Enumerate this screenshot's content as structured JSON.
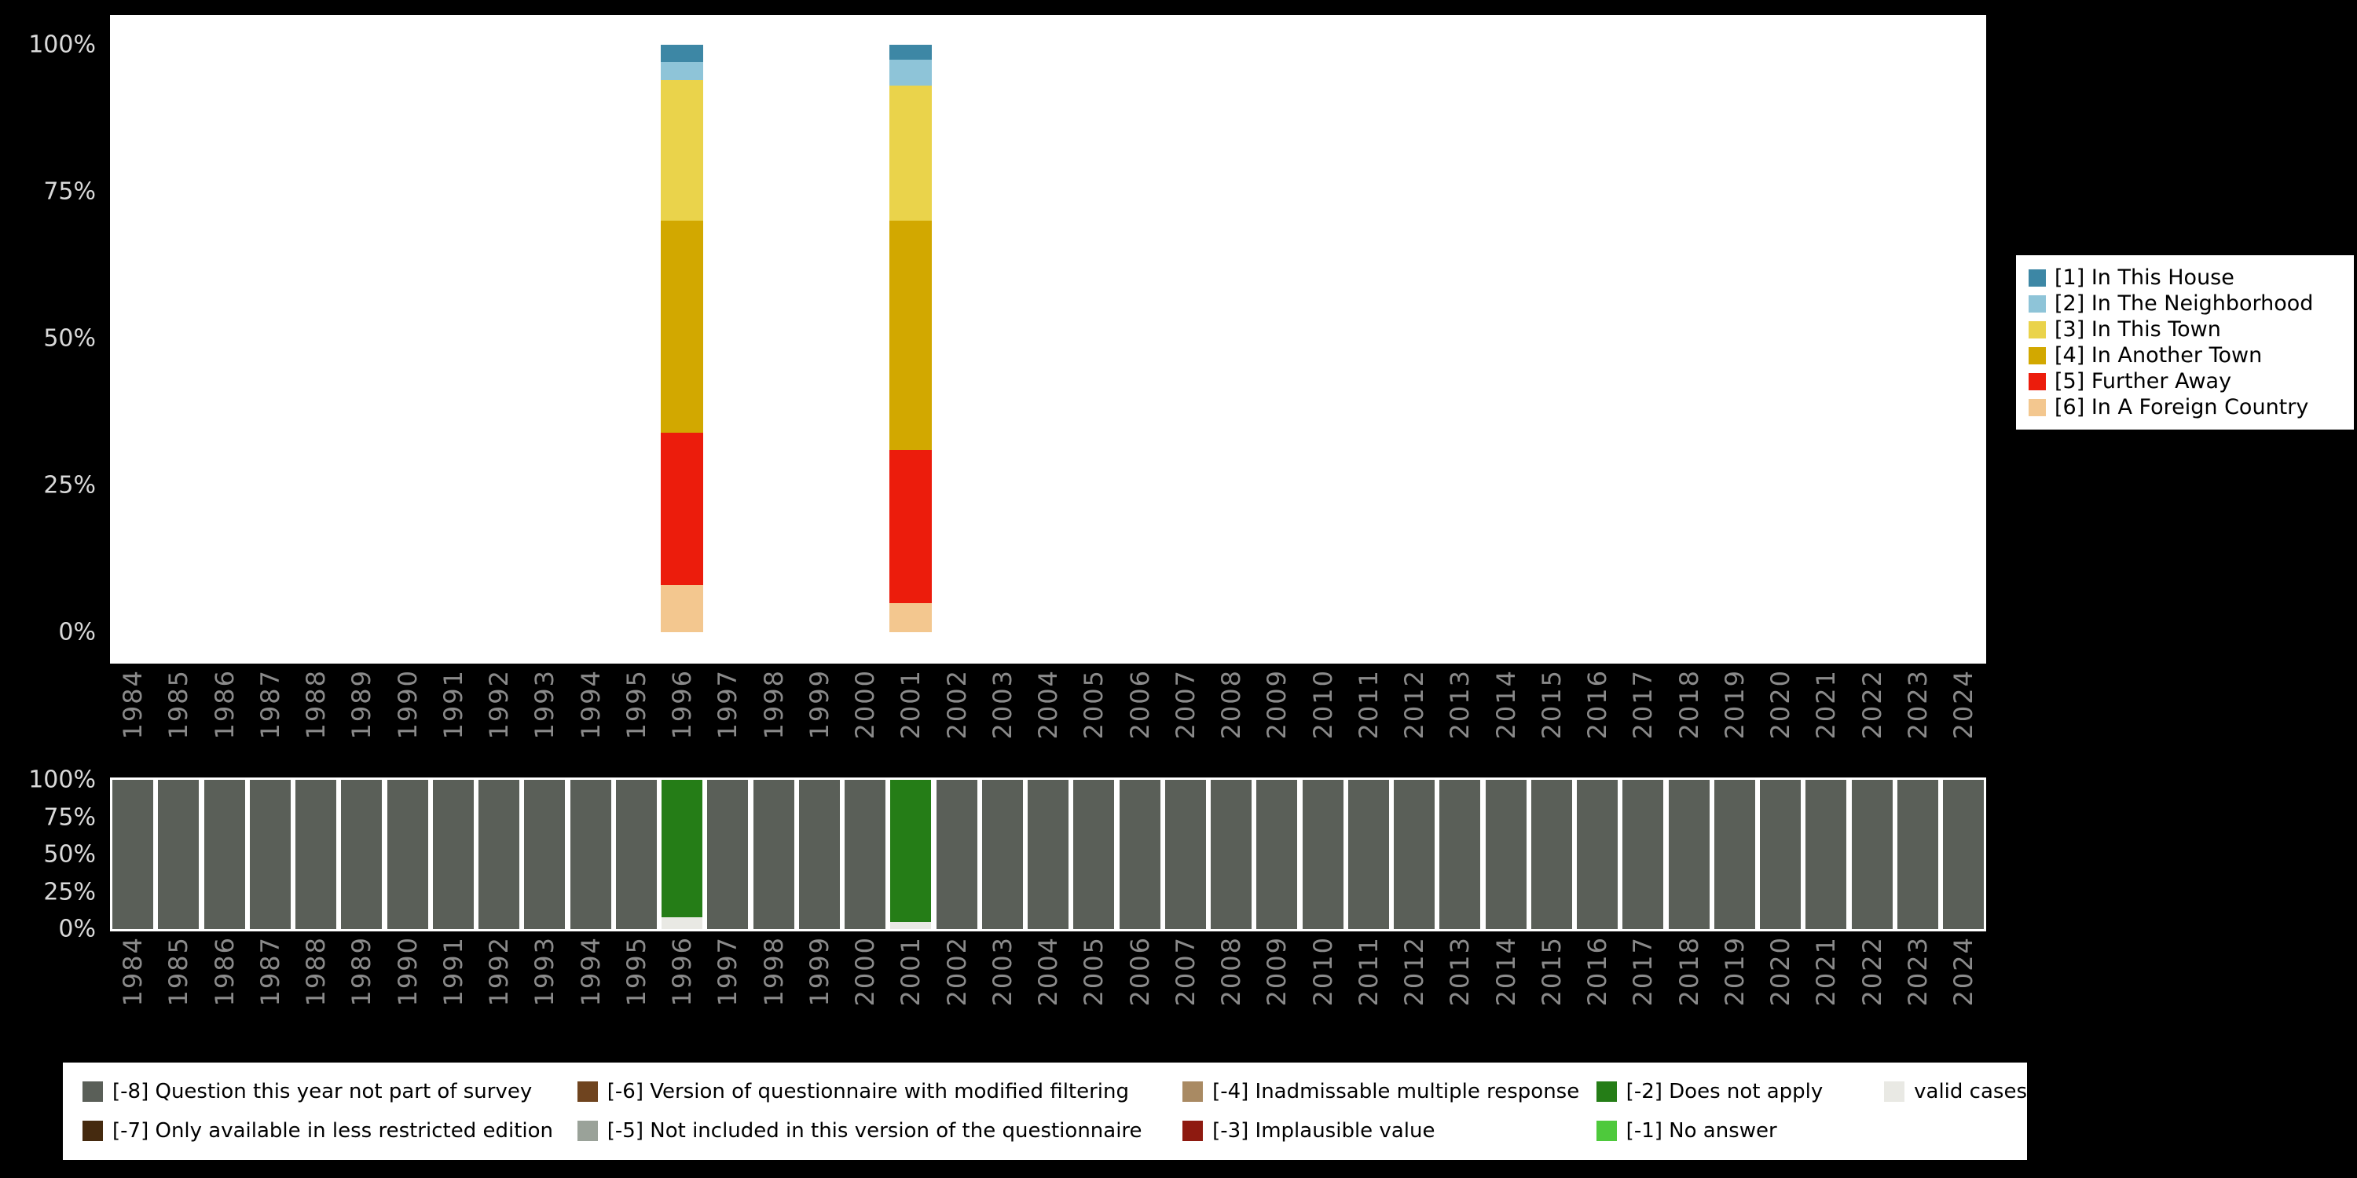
{
  "colors": {
    "background": "#000000",
    "plot_background": "#ffffff",
    "legend_background": "#ffffff",
    "axis_year_text": "#8a8a8a",
    "axis_percent_text": "#d9d9d9"
  },
  "chart_data": [
    {
      "id": "distribution",
      "type": "bar",
      "stacked": true,
      "stacking": "bottom-to-top",
      "grid": false,
      "legend_position": "right",
      "ylim": [
        0,
        100
      ],
      "yticks": [
        {
          "value": 100,
          "label": "100%"
        },
        {
          "value": 75,
          "label": "75%"
        },
        {
          "value": 50,
          "label": "50%"
        },
        {
          "value": 25,
          "label": "25%"
        },
        {
          "value": 0,
          "label": "0%"
        }
      ],
      "categories": [
        "1984",
        "1985",
        "1986",
        "1987",
        "1988",
        "1989",
        "1990",
        "1991",
        "1992",
        "1993",
        "1994",
        "1995",
        "1996",
        "1997",
        "1998",
        "1999",
        "2000",
        "2001",
        "2002",
        "2003",
        "2004",
        "2005",
        "2006",
        "2007",
        "2008",
        "2009",
        "2010",
        "2011",
        "2012",
        "2013",
        "2014",
        "2015",
        "2016",
        "2017",
        "2018",
        "2019",
        "2020",
        "2021",
        "2022",
        "2023",
        "2024"
      ],
      "series": [
        {
          "name": "[6] In A Foreign Country",
          "color": "#f3c78f",
          "values": [
            0,
            0,
            0,
            0,
            0,
            0,
            0,
            0,
            0,
            0,
            0,
            0,
            8,
            0,
            0,
            0,
            0,
            5,
            0,
            0,
            0,
            0,
            0,
            0,
            0,
            0,
            0,
            0,
            0,
            0,
            0,
            0,
            0,
            0,
            0,
            0,
            0,
            0,
            0,
            0,
            0
          ]
        },
        {
          "name": "[5] Further Away",
          "color": "#ec1c0c",
          "values": [
            0,
            0,
            0,
            0,
            0,
            0,
            0,
            0,
            0,
            0,
            0,
            0,
            26,
            0,
            0,
            0,
            0,
            26,
            0,
            0,
            0,
            0,
            0,
            0,
            0,
            0,
            0,
            0,
            0,
            0,
            0,
            0,
            0,
            0,
            0,
            0,
            0,
            0,
            0,
            0,
            0
          ]
        },
        {
          "name": "[4] In Another Town",
          "color": "#d2a800",
          "values": [
            0,
            0,
            0,
            0,
            0,
            0,
            0,
            0,
            0,
            0,
            0,
            0,
            36,
            0,
            0,
            0,
            0,
            39,
            0,
            0,
            0,
            0,
            0,
            0,
            0,
            0,
            0,
            0,
            0,
            0,
            0,
            0,
            0,
            0,
            0,
            0,
            0,
            0,
            0,
            0,
            0
          ]
        },
        {
          "name": "[3] In This Town",
          "color": "#ead34b",
          "values": [
            0,
            0,
            0,
            0,
            0,
            0,
            0,
            0,
            0,
            0,
            0,
            0,
            24,
            0,
            0,
            0,
            0,
            23,
            0,
            0,
            0,
            0,
            0,
            0,
            0,
            0,
            0,
            0,
            0,
            0,
            0,
            0,
            0,
            0,
            0,
            0,
            0,
            0,
            0,
            0,
            0
          ]
        },
        {
          "name": "[2] In The Neighborhood",
          "color": "#8ec4d8",
          "values": [
            0,
            0,
            0,
            0,
            0,
            0,
            0,
            0,
            0,
            0,
            0,
            0,
            3,
            0,
            0,
            0,
            0,
            4.5,
            0,
            0,
            0,
            0,
            0,
            0,
            0,
            0,
            0,
            0,
            0,
            0,
            0,
            0,
            0,
            0,
            0,
            0,
            0,
            0,
            0,
            0,
            0
          ]
        },
        {
          "name": "[1] In This House",
          "color": "#3d87a5",
          "values": [
            0,
            0,
            0,
            0,
            0,
            0,
            0,
            0,
            0,
            0,
            0,
            0,
            3,
            0,
            0,
            0,
            0,
            2.5,
            0,
            0,
            0,
            0,
            0,
            0,
            0,
            0,
            0,
            0,
            0,
            0,
            0,
            0,
            0,
            0,
            0,
            0,
            0,
            0,
            0,
            0,
            0
          ]
        }
      ]
    },
    {
      "id": "missings",
      "type": "bar",
      "stacked": true,
      "stacking": "bottom-to-top",
      "grid": false,
      "legend_position": "bottom",
      "ylim": [
        0,
        100
      ],
      "yticks": [
        {
          "value": 100,
          "label": "100%"
        },
        {
          "value": 75,
          "label": "75%"
        },
        {
          "value": 50,
          "label": "50%"
        },
        {
          "value": 25,
          "label": "25%"
        },
        {
          "value": 0,
          "label": "0%"
        }
      ],
      "categories": [
        "1984",
        "1985",
        "1986",
        "1987",
        "1988",
        "1989",
        "1990",
        "1991",
        "1992",
        "1993",
        "1994",
        "1995",
        "1996",
        "1997",
        "1998",
        "1999",
        "2000",
        "2001",
        "2002",
        "2003",
        "2004",
        "2005",
        "2006",
        "2007",
        "2008",
        "2009",
        "2010",
        "2011",
        "2012",
        "2013",
        "2014",
        "2015",
        "2016",
        "2017",
        "2018",
        "2019",
        "2020",
        "2021",
        "2022",
        "2023",
        "2024"
      ],
      "series": [
        {
          "name": "valid cases",
          "color": "#e9e9e4",
          "values": [
            0,
            0,
            0,
            0,
            0,
            0,
            0,
            0,
            0,
            0,
            0,
            0,
            8,
            0,
            0,
            0,
            0,
            5,
            0,
            0,
            0,
            0,
            0,
            0,
            0,
            0,
            0,
            0,
            0,
            0,
            0,
            0,
            0,
            0,
            0,
            0,
            0,
            0,
            0,
            0,
            0
          ]
        },
        {
          "name": "[-2] Does not apply",
          "color": "#257d17",
          "values": [
            0,
            0,
            0,
            0,
            0,
            0,
            0,
            0,
            0,
            0,
            0,
            0,
            92,
            0,
            0,
            0,
            0,
            95,
            0,
            0,
            0,
            0,
            0,
            0,
            0,
            0,
            0,
            0,
            0,
            0,
            0,
            0,
            0,
            0,
            0,
            0,
            0,
            0,
            0,
            0,
            0
          ]
        },
        {
          "name": "[-8] Question this year not part of survey",
          "color": "#5a5f58",
          "values": [
            100,
            100,
            100,
            100,
            100,
            100,
            100,
            100,
            100,
            100,
            100,
            100,
            0,
            100,
            100,
            100,
            100,
            0,
            100,
            100,
            100,
            100,
            100,
            100,
            100,
            100,
            100,
            100,
            100,
            100,
            100,
            100,
            100,
            100,
            100,
            100,
            100,
            100,
            100,
            100,
            100
          ]
        }
      ]
    }
  ],
  "legend_top": {
    "items": [
      {
        "label": "[1] In This House",
        "color": "#3d87a5"
      },
      {
        "label": "[2] In The Neighborhood",
        "color": "#8ec4d8"
      },
      {
        "label": "[3] In This Town",
        "color": "#ead34b"
      },
      {
        "label": "[4] In Another Town",
        "color": "#d2a800"
      },
      {
        "label": "[5] Further Away",
        "color": "#ec1c0c"
      },
      {
        "label": "[6] In A Foreign Country",
        "color": "#f3c78f"
      }
    ]
  },
  "legend_bottom": {
    "columns": [
      [
        {
          "label": "[-8] Question this year not part of survey",
          "color": "#5a5f58"
        },
        {
          "label": "[-7] Only available in less restricted edition",
          "color": "#452a0f"
        }
      ],
      [
        {
          "label": "[-6] Version of questionnaire with modified filtering",
          "color": "#6f441f"
        },
        {
          "label": "[-5] Not included in this version of the questionnaire",
          "color": "#9aa299"
        }
      ],
      [
        {
          "label": "[-4] Inadmissable multiple response",
          "color": "#a98a63"
        },
        {
          "label": "[-3] Implausible value",
          "color": "#8e1a10"
        }
      ],
      [
        {
          "label": "[-2] Does not apply",
          "color": "#257d17"
        },
        {
          "label": "[-1] No answer",
          "color": "#4ec93c"
        }
      ],
      [
        {
          "label": "valid cases",
          "color": "#e9e9e4"
        }
      ]
    ]
  }
}
